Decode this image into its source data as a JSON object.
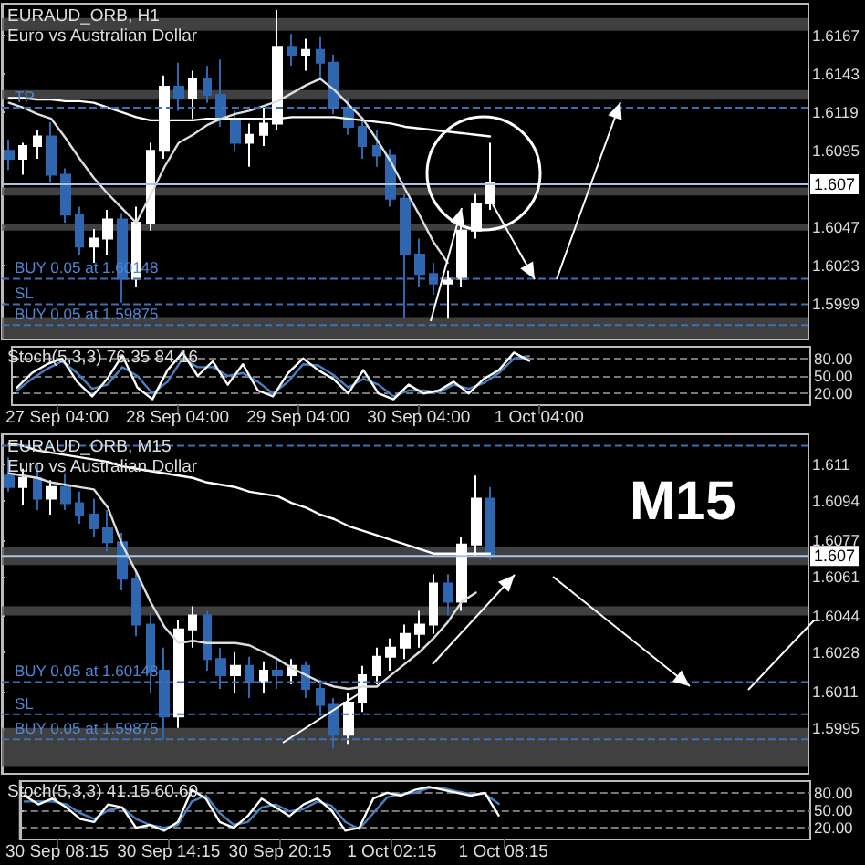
{
  "chart_data": [
    {
      "type": "candlestick",
      "title": "EURAUD_ORB, H1",
      "subtitle": "Euro vs Australian Dollar",
      "categories": [
        null,
        null,
        null,
        null,
        null,
        null,
        null,
        null,
        null,
        null,
        null,
        null,
        null,
        null,
        null,
        null,
        null,
        null,
        null,
        null,
        null,
        null,
        null,
        null,
        null,
        null,
        null,
        null,
        null,
        null,
        null,
        null,
        null,
        null,
        null,
        null,
        null,
        null,
        null,
        null,
        null,
        null,
        null,
        null,
        null,
        null,
        null,
        null,
        null,
        null,
        null,
        null,
        null,
        null,
        null,
        null,
        null
      ],
      "ohlc": [
        [
          1.6095,
          1.6102,
          1.6083,
          1.609
        ],
        [
          1.609,
          1.61,
          1.608,
          1.6098
        ],
        [
          1.6098,
          1.6108,
          1.609,
          1.6104
        ],
        [
          1.6104,
          1.6113,
          1.6075,
          1.608
        ],
        [
          1.608,
          1.6084,
          1.605,
          1.6055
        ],
        [
          1.6055,
          1.606,
          1.603,
          1.6035
        ],
        [
          1.6035,
          1.6046,
          1.6025,
          1.604
        ],
        [
          1.604,
          1.6058,
          1.603,
          1.6052
        ],
        [
          1.6052,
          1.6056,
          1.6,
          1.6015
        ],
        [
          1.6015,
          1.606,
          1.601,
          1.605
        ],
        [
          1.605,
          1.61,
          1.6045,
          1.6095
        ],
        [
          1.6095,
          1.6142,
          1.609,
          1.6135
        ],
        [
          1.6135,
          1.615,
          1.612,
          1.6128
        ],
        [
          1.6128,
          1.6145,
          1.6115,
          1.614
        ],
        [
          1.614,
          1.6148,
          1.6125,
          1.613
        ],
        [
          1.613,
          1.6152,
          1.611,
          1.6115
        ],
        [
          1.6115,
          1.612,
          1.6095,
          1.61
        ],
        [
          1.61,
          1.6112,
          1.6085,
          1.6105
        ],
        [
          1.6105,
          1.6122,
          1.6098,
          1.6112
        ],
        [
          1.6112,
          1.6183,
          1.6108,
          1.616
        ],
        [
          1.616,
          1.6168,
          1.6148,
          1.6155
        ],
        [
          1.6155,
          1.6165,
          1.6145,
          1.6158
        ],
        [
          1.6158,
          1.6166,
          1.614,
          1.615
        ],
        [
          1.615,
          1.6155,
          1.6118,
          1.6122
        ],
        [
          1.6122,
          1.6128,
          1.6105,
          1.611
        ],
        [
          1.611,
          1.6115,
          1.609,
          1.6098
        ],
        [
          1.6098,
          1.6108,
          1.6085,
          1.6092
        ],
        [
          1.6092,
          1.6096,
          1.606,
          1.6065
        ],
        [
          1.6065,
          1.6068,
          1.599,
          1.603
        ],
        [
          1.603,
          1.604,
          1.601,
          1.6018
        ],
        [
          1.6018,
          1.6025,
          1.6005,
          1.6012
        ],
        [
          1.6012,
          1.602,
          1.599,
          1.6015
        ],
        [
          1.6015,
          1.6048,
          1.601,
          1.6045
        ],
        [
          1.6045,
          1.6068,
          1.604,
          1.6062
        ],
        [
          1.6062,
          1.61,
          1.6058,
          1.6075
        ],
        null,
        null,
        null,
        null,
        null,
        null,
        null,
        null,
        null,
        null,
        null,
        null,
        null,
        null,
        null,
        null,
        null,
        null,
        null,
        null,
        null,
        null
      ],
      "series": [
        {
          "type": "line",
          "color": "#ffffff",
          "values": [
            1.6128,
            1.6128,
            1.6127,
            1.6127,
            1.6126,
            1.6126,
            1.6125,
            1.6122,
            1.6119,
            1.6116,
            1.6114,
            1.6114,
            1.6114,
            1.6114,
            1.6115,
            1.6115,
            1.6115,
            1.6115,
            1.6115,
            1.6115,
            1.6116,
            1.6116,
            1.6116,
            1.6116,
            1.6115,
            1.6114,
            1.6113,
            1.6112,
            1.611,
            1.6109,
            1.6108,
            1.6107,
            1.6106,
            1.6105,
            1.6104,
            null,
            null,
            null,
            null,
            null,
            null,
            null,
            null,
            null,
            null,
            null,
            null,
            null,
            null,
            null,
            null,
            null,
            null,
            null,
            null,
            null,
            null
          ]
        },
        {
          "type": "line",
          "color": "#dddddd",
          "values": [
            1.6125,
            1.6122,
            1.6118,
            1.6115,
            1.6103,
            1.609,
            1.6078,
            1.6068,
            1.6059,
            1.605,
            1.6067,
            1.6085,
            1.61,
            1.6105,
            1.6111,
            1.6115,
            1.6118,
            1.612,
            1.6123,
            1.6126,
            1.6131,
            1.6136,
            1.614,
            1.6133,
            1.6124,
            1.6115,
            1.6102,
            1.6088,
            1.6071,
            1.6055,
            1.6038,
            1.6025,
            null,
            null,
            null,
            null,
            null,
            null,
            null,
            null,
            null,
            null,
            null,
            null,
            null,
            null,
            null,
            null,
            null,
            null,
            null,
            null,
            null,
            null,
            null,
            null,
            null
          ]
        }
      ],
      "ylim": [
        1.5977,
        1.6187
      ],
      "yticks": [
        1.5999,
        1.6023,
        1.6047,
        {
          "value": 1.6071,
          "label": null
        },
        1.6095,
        1.6119,
        1.6143,
        1.6167
      ],
      "tick_labels": "y",
      "ref_lines": [
        {
          "axis": "y",
          "value": 1.6122,
          "label": "TP",
          "color": "#3c6fb5",
          "line_style": "dashed"
        },
        {
          "axis": "y",
          "value": 1.6074,
          "label": "1.607",
          "color": "#aac4e8",
          "line_style": "solid"
        },
        {
          "axis": "y",
          "value": 1.6015,
          "label": "BUY 0.05 at 1.60148",
          "color": "#3c6fb5",
          "line_style": "dashed"
        },
        {
          "axis": "y",
          "value": 1.5999,
          "label": "SL",
          "color": "#3c6fb5",
          "line_style": "dashed"
        },
        {
          "axis": "y",
          "value": 1.5986,
          "label": "BUY 0.05 at 1.59875",
          "color": "#3c6fb5",
          "line_style": "dashed"
        }
      ],
      "bands": [
        {
          "axis": "y",
          "from": 1.617,
          "to": 1.6178,
          "color": "#555555"
        },
        {
          "axis": "y",
          "from": 1.6127,
          "to": 1.6133,
          "color": "#555555"
        },
        {
          "axis": "y",
          "from": 1.6067,
          "to": 1.6072,
          "color": "#555555"
        },
        {
          "axis": "y",
          "from": 1.6045,
          "to": 1.6049,
          "color": "#555555"
        },
        {
          "axis": "y",
          "from": 1.5977,
          "to": 1.5991,
          "color": "#555555"
        }
      ]
    },
    {
      "type": "line",
      "title": "Stoch(5,3,3) 76.35 84.16",
      "x": [
        "--09-26T20:00",
        "--09-26T23:00",
        "--09-27T02:00",
        "--09-27T05:00",
        "--09-27T08:00",
        "--09-27T11:00",
        "--09-27T14:00",
        "--09-27T17:00",
        "--09-27T20:00",
        "--09-27T23:00",
        "--09-28T02:00",
        "--09-28T05:00",
        "--09-28T08:00",
        "--09-28T11:00",
        "--09-28T14:00",
        "--09-28T17:00",
        "--09-28T20:00",
        "--09-28T23:00",
        "--09-29T02:00",
        "--09-29T05:00",
        "--09-29T08:00",
        "--09-29T11:00",
        "--09-29T14:00",
        "--09-29T17:00",
        "--09-29T20:00",
        "--09-29T23:00",
        "--09-30T02:00",
        "--09-30T05:00",
        "--09-30T08:00",
        "--09-30T11:00",
        "--09-30T14:00",
        "--09-30T17:00",
        "--09-30T20:00",
        "--09-30T23:00",
        "--10-01T02:00"
      ],
      "series": [
        {
          "color": "#4a7fc0",
          "values": [
            25,
            45,
            62,
            75,
            55,
            28,
            35,
            65,
            50,
            20,
            40,
            80,
            65,
            65,
            50,
            55,
            40,
            20,
            40,
            70,
            68,
            52,
            30,
            45,
            35,
            15,
            25,
            25,
            22,
            35,
            28,
            38,
            55,
            80,
            84
          ]
        },
        {
          "color": "#ffffff",
          "values": [
            30,
            55,
            70,
            80,
            40,
            15,
            45,
            85,
            30,
            10,
            60,
            90,
            50,
            75,
            35,
            70,
            25,
            15,
            55,
            80,
            60,
            45,
            20,
            60,
            20,
            10,
            35,
            20,
            25,
            40,
            20,
            45,
            60,
            90,
            76
          ]
        }
      ],
      "xlim": [
        "--09-26T19:00",
        "--10-03T10:00"
      ],
      "ylim": [
        0,
        100
      ],
      "xticks": [
        {
          "value": "--09-27T04:00",
          "label": "27 Sep 04:00"
        },
        {
          "value": "--09-28T04:00",
          "label": "28 Sep 04:00"
        },
        {
          "value": "--09-29T04:00",
          "label": "29 Sep 04:00"
        },
        {
          "value": "--09-30T04:00",
          "label": "30 Sep 04:00"
        },
        {
          "value": "--10-01T04:00",
          "label": "1 Oct 04:00"
        }
      ],
      "yticks": [
        {
          "value": 20,
          "label": "20.00"
        },
        {
          "value": 50,
          "label": "50.00"
        },
        {
          "value": 80,
          "label": "80.00"
        }
      ],
      "grid": "y"
    },
    {
      "type": "candlestick",
      "title": "EURAUD_ORB, M15",
      "subtitle": "Euro vs Australian Dollar",
      "annotations": [
        "M15"
      ],
      "categories": [
        null,
        null,
        null,
        null,
        null,
        null,
        null,
        null,
        null,
        null,
        null,
        null,
        null,
        null,
        null,
        null,
        null,
        null,
        null,
        null,
        null,
        null,
        null,
        null,
        null,
        null,
        null,
        null,
        null,
        null,
        null,
        null,
        null,
        null,
        null,
        null,
        null,
        null,
        null,
        null,
        null,
        null,
        null,
        null,
        null,
        null,
        null,
        null,
        null,
        null,
        null,
        null,
        null,
        null,
        null,
        null,
        null
      ],
      "ohlc": [
        [
          1.6105,
          1.6113,
          1.6098,
          1.61
        ],
        [
          1.61,
          1.6108,
          1.6092,
          1.6104
        ],
        [
          1.6104,
          1.611,
          1.609,
          1.6095
        ],
        [
          1.6095,
          1.6103,
          1.6088,
          1.61
        ],
        [
          1.61,
          1.6106,
          1.609,
          1.6093
        ],
        [
          1.6093,
          1.6098,
          1.6084,
          1.6088
        ],
        [
          1.6088,
          1.6095,
          1.6078,
          1.6082
        ],
        [
          1.6082,
          1.609,
          1.6072,
          1.6076
        ],
        [
          1.6076,
          1.608,
          1.6055,
          1.606
        ],
        [
          1.606,
          1.6064,
          1.6035,
          1.604
        ],
        [
          1.604,
          1.6045,
          1.601,
          1.602
        ],
        [
          1.602,
          1.603,
          1.599,
          1.6
        ],
        [
          1.6,
          1.6042,
          1.5995,
          1.6038
        ],
        [
          1.6038,
          1.6048,
          1.603,
          1.6044
        ],
        [
          1.6044,
          1.6046,
          1.602,
          1.6025
        ],
        [
          1.6025,
          1.603,
          1.6012,
          1.6018
        ],
        [
          1.6018,
          1.6028,
          1.601,
          1.6022
        ],
        [
          1.6022,
          1.6026,
          1.6008,
          1.6015
        ],
        [
          1.6015,
          1.6024,
          1.601,
          1.602
        ],
        [
          1.602,
          1.6026,
          1.6012,
          1.6018
        ],
        [
          1.6018,
          1.6025,
          1.6014,
          1.6022
        ],
        [
          1.6022,
          1.6024,
          1.6008,
          1.6012
        ],
        [
          1.6012,
          1.6016,
          1.6,
          1.6005
        ],
        [
          1.6005,
          1.6008,
          1.5986,
          1.5992
        ],
        [
          1.5992,
          1.601,
          1.5988,
          1.6006
        ],
        [
          1.6006,
          1.6022,
          1.6002,
          1.6018
        ],
        [
          1.6018,
          1.603,
          1.6014,
          1.6026
        ],
        [
          1.6026,
          1.6034,
          1.602,
          1.603
        ],
        [
          1.603,
          1.604,
          1.6025,
          1.6036
        ],
        [
          1.6036,
          1.6046,
          1.603,
          1.604
        ],
        [
          1.604,
          1.6062,
          1.6036,
          1.6058
        ],
        [
          1.6058,
          1.6062,
          1.6044,
          1.605
        ],
        [
          1.605,
          1.6078,
          1.6046,
          1.6075
        ],
        [
          1.6075,
          1.6105,
          1.607,
          1.6095
        ],
        [
          1.6095,
          1.61,
          1.6068,
          1.607
        ],
        null,
        null,
        null,
        null,
        null,
        null,
        null,
        null,
        null,
        null,
        null,
        null,
        null,
        null,
        null,
        null,
        null,
        null,
        null,
        null,
        null,
        null
      ],
      "series": [
        {
          "type": "line",
          "color": "#ffffff",
          "values": [
            1.6119,
            1.6118,
            1.6116,
            1.6115,
            1.6114,
            1.6113,
            1.6112,
            1.6111,
            1.6109,
            1.6108,
            1.6107,
            1.6106,
            1.6105,
            1.6104,
            1.6102,
            1.6101,
            1.61,
            1.6098,
            1.6097,
            1.6096,
            1.6093,
            1.6091,
            1.6088,
            1.6086,
            1.6083,
            1.6081,
            1.6079,
            1.6077,
            1.6075,
            1.6073,
            1.6071,
            1.6071,
            1.6071,
            1.6071,
            1.6071,
            null,
            null,
            null,
            null,
            null,
            null,
            null,
            null,
            null,
            null,
            null,
            null,
            null,
            null,
            null,
            null,
            null,
            null,
            null,
            null,
            null,
            null
          ]
        },
        {
          "type": "line",
          "color": "#dddddd",
          "values": [
            1.6106,
            1.6105,
            1.6104,
            1.6102,
            1.6101,
            1.61,
            1.6099,
            1.6091,
            1.6075,
            1.6063,
            1.605,
            1.6039,
            1.6032,
            1.6033,
            1.6032,
            1.6032,
            1.6032,
            1.6031,
            1.6028,
            1.6025,
            1.6021,
            1.6018,
            1.6015,
            1.6013,
            1.6012,
            1.6013,
            1.6013,
            1.6018,
            1.6023,
            1.6028,
            1.6034,
            1.6041,
            1.605,
            1.6054,
            null,
            null,
            null,
            null,
            null,
            null,
            null,
            null,
            null,
            null,
            null,
            null,
            null,
            null,
            null,
            null,
            null,
            null,
            null,
            null,
            null,
            null,
            null
          ]
        }
      ],
      "ylim": [
        1.5975,
        1.6123
      ],
      "yticks": [
        1.5995,
        1.6011,
        1.6028,
        1.6044,
        1.6061,
        1.6077,
        1.6094,
        1.611
      ],
      "tick_labels": "y",
      "ref_lines": [
        {
          "axis": "y",
          "value": 1.6118,
          "color": "#3c6fb5",
          "line_style": "dashed"
        },
        {
          "axis": "y",
          "value": 1.607,
          "label": "1.607",
          "color": "#aac4e8",
          "line_style": "solid"
        },
        {
          "axis": "y",
          "value": 1.6015,
          "label": "BUY 0.05 at 1.60148",
          "color": "#3c6fb5",
          "line_style": "dashed"
        },
        {
          "axis": "y",
          "value": 1.6001,
          "label": "SL",
          "color": "#3c6fb5",
          "line_style": "dashed"
        },
        {
          "axis": "y",
          "value": 1.599,
          "label": "BUY 0.05 at 1.59875",
          "color": "#3c6fb5",
          "line_style": "dashed"
        }
      ],
      "bands": [
        {
          "axis": "y",
          "from": 1.6066,
          "to": 1.6074,
          "color": "#555555"
        },
        {
          "axis": "y",
          "from": 1.6044,
          "to": 1.6048,
          "color": "#555555"
        },
        {
          "axis": "y",
          "from": 1.5978,
          "to": 1.5995,
          "color": "#555555"
        }
      ]
    },
    {
      "type": "line",
      "title": "Stoch(5,3,3) 41.15 60.60",
      "x": [
        "--09-30T06:30",
        "--09-30T07:15",
        "--09-30T08:00",
        "--09-30T08:45",
        "--09-30T09:30",
        "--09-30T10:15",
        "--09-30T11:00",
        "--09-30T11:45",
        "--09-30T12:30",
        "--09-30T13:15",
        "--09-30T14:00",
        "--09-30T14:45",
        "--09-30T15:30",
        "--09-30T16:15",
        "--09-30T17:00",
        "--09-30T17:45",
        "--09-30T18:30",
        "--09-30T19:15",
        "--09-30T20:00",
        "--09-30T20:45",
        "--09-30T21:30",
        "--09-30T22:15",
        "--09-30T23:00",
        "--09-30T23:45",
        "--10-01T00:30",
        "--10-01T01:15",
        "--10-01T02:00",
        "--10-01T02:45",
        "--10-01T03:30",
        "--10-01T04:15",
        "--10-01T05:00",
        "--10-01T05:45",
        "--10-01T06:30",
        "--10-01T07:15",
        "--10-01T08:00"
      ],
      "series": [
        {
          "color": "#4a7fc0",
          "values": [
            65,
            65,
            65,
            60,
            45,
            35,
            50,
            55,
            35,
            25,
            20,
            25,
            65,
            75,
            45,
            25,
            30,
            55,
            60,
            48,
            52,
            65,
            58,
            30,
            18,
            45,
            72,
            78,
            80,
            88,
            88,
            82,
            78,
            78,
            61
          ]
        },
        {
          "color": "#ffffff",
          "values": [
            75,
            60,
            70,
            55,
            35,
            30,
            60,
            55,
            20,
            25,
            15,
            30,
            85,
            70,
            30,
            20,
            40,
            70,
            55,
            40,
            60,
            70,
            50,
            15,
            20,
            70,
            80,
            75,
            85,
            90,
            85,
            80,
            75,
            80,
            41
          ]
        }
      ],
      "xlim": [
        "--09-30T06:15",
        "--10-02T00:45"
      ],
      "ylim": [
        0,
        100
      ],
      "xticks": [
        {
          "value": "--09-30T08:15",
          "label": "30 Sep 08:15"
        },
        {
          "value": "--09-30T14:15",
          "label": "30 Sep 14:15"
        },
        {
          "value": "--09-30T20:15",
          "label": "30 Sep 20:15"
        },
        {
          "value": "--10-01T02:15",
          "label": "1 Oct 02:15"
        },
        {
          "value": "--10-01T08:15",
          "label": "1 Oct 08:15"
        }
      ],
      "yticks": [
        {
          "value": 20,
          "label": "20.00"
        },
        {
          "value": 50,
          "label": "50.00"
        },
        {
          "value": 80,
          "label": "80.00"
        }
      ],
      "grid": "y"
    }
  ]
}
